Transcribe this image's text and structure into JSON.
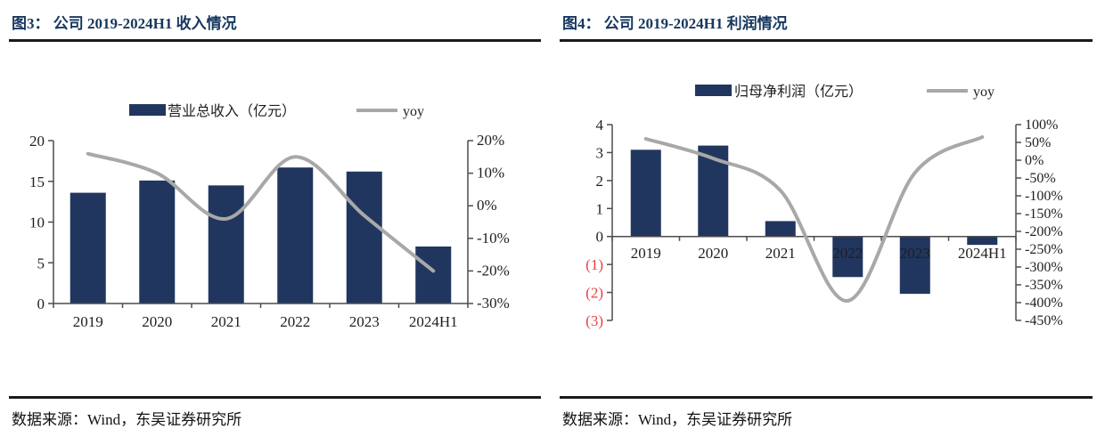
{
  "panels": [
    {
      "title": "图3： 公司 2019-2024H1 收入情况",
      "source": "数据来源：Wind，东吴证券研究所"
    },
    {
      "title": "图4： 公司 2019-2024H1 利润情况",
      "source": "数据来源：Wind，东吴证券研究所"
    }
  ],
  "colors": {
    "bar": "#21365f",
    "line": "#a8a8a8",
    "title": "#17375e",
    "divider": "#1a1a1a",
    "axis": "#4d4d4d",
    "text": "#1f1f1f",
    "negative_red": "#e8403e"
  },
  "chart_data": [
    {
      "type": "bar",
      "subtype": "bar+line-dual-axis",
      "title": "图3： 公司 2019-2024H1 收入情况",
      "categories": [
        "2019",
        "2020",
        "2021",
        "2022",
        "2023",
        "2024H1"
      ],
      "series": [
        {
          "name": "营业总收入（亿元）",
          "type": "bar",
          "axis": "left",
          "values": [
            13.6,
            15.1,
            14.5,
            16.7,
            16.2,
            7.0
          ]
        },
        {
          "name": "yoy",
          "type": "line",
          "axis": "right",
          "values": [
            16,
            10,
            -4,
            15,
            -3,
            -20
          ]
        }
      ],
      "left_axis": {
        "min": 0,
        "max": 20,
        "ticks": [
          0,
          5,
          10,
          15,
          20
        ],
        "format": "number"
      },
      "right_axis": {
        "min": -30,
        "max": 20,
        "ticks": [
          20,
          10,
          0,
          -10,
          -20,
          -30
        ],
        "format": "percent"
      },
      "grid": false,
      "legend_position": "top"
    },
    {
      "type": "bar",
      "subtype": "bar+line-dual-axis",
      "title": "图4： 公司 2019-2024H1 利润情况",
      "categories": [
        "2019",
        "2020",
        "2021",
        "2022",
        "2023",
        "2024H1"
      ],
      "series": [
        {
          "name": "归母净利润（亿元）",
          "type": "bar",
          "axis": "left",
          "values": [
            3.1,
            3.25,
            0.55,
            -1.45,
            -2.05,
            -0.3
          ]
        },
        {
          "name": "yoy",
          "type": "line",
          "axis": "right",
          "values": [
            60,
            5,
            -85,
            -395,
            -35,
            65
          ]
        }
      ],
      "left_axis": {
        "min": -3,
        "max": 4,
        "ticks": [
          4,
          3,
          2,
          1,
          0,
          -1,
          -2,
          -3
        ],
        "format": "number",
        "negative_style": "parentheses-red"
      },
      "right_axis": {
        "min": -450,
        "max": 100,
        "ticks": [
          100,
          50,
          0,
          -50,
          -100,
          -150,
          -200,
          -250,
          -300,
          -350,
          -400,
          -450
        ],
        "format": "percent"
      },
      "grid": false,
      "legend_position": "top"
    }
  ]
}
